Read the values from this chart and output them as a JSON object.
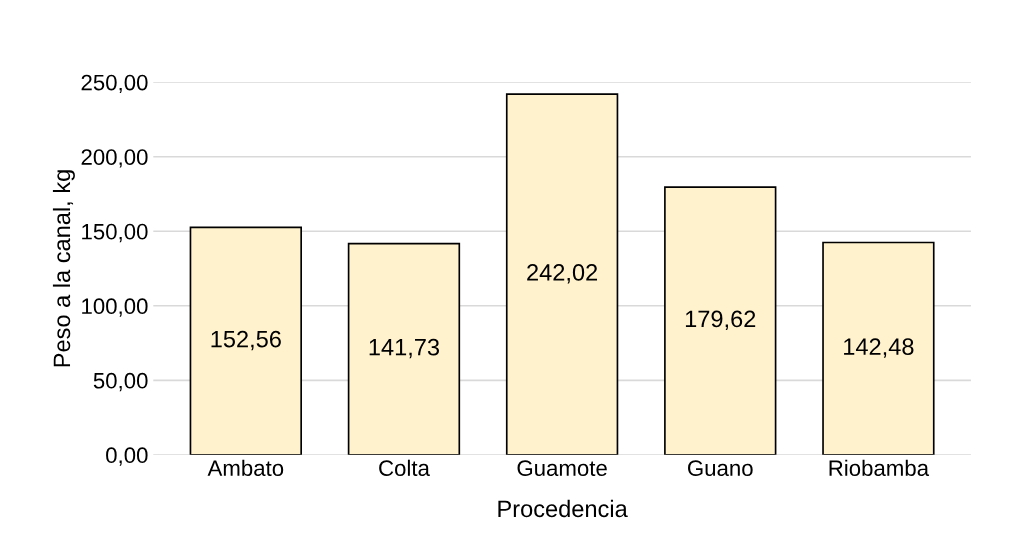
{
  "chart_data": {
    "type": "bar",
    "xlabel": "Procedencia",
    "ylabel": "Peso a la canal, kg",
    "categories": [
      "Ambato",
      "Colta",
      "Guamote",
      "Guano",
      "Riobamba"
    ],
    "values": [
      152.56,
      141.73,
      242.02,
      179.62,
      142.48
    ],
    "value_labels": [
      "152,56",
      "141,73",
      "242,02",
      "179,62",
      "142,48"
    ],
    "color": "#fff2cc",
    "ylim": [
      0,
      250
    ],
    "yticks": [
      {
        "value": 0,
        "label": "0,00"
      },
      {
        "value": 50,
        "label": "50,00"
      },
      {
        "value": 100,
        "label": "100,00"
      },
      {
        "value": 150,
        "label": "150,00"
      },
      {
        "value": 200,
        "label": "200,00"
      },
      {
        "value": 250,
        "label": "250,00"
      }
    ],
    "grid": "y"
  }
}
